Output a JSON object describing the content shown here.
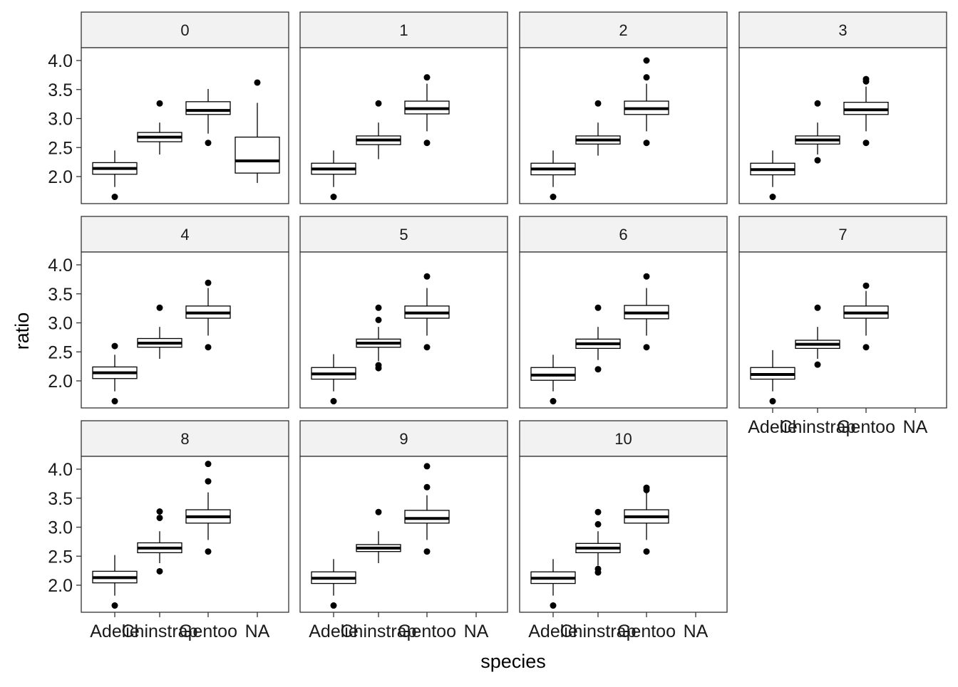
{
  "chart_data": {
    "type": "boxplot",
    "facet_layout": "wrap",
    "xlabel": "species",
    "ylabel": "ratio",
    "categories": [
      "Adelie",
      "Chinstrap",
      "Gentoo",
      "NA"
    ],
    "y_ticks": [
      "2.0",
      "2.5",
      "3.0",
      "3.5",
      "4.0"
    ],
    "ylim": [
      1.6,
      4.1
    ],
    "grid": false,
    "panels": [
      {
        "label": "0",
        "boxes": [
          {
            "category": "Adelie",
            "lower": 1.82,
            "q1": 2.04,
            "median": 2.14,
            "q3": 2.24,
            "upper": 2.45,
            "outliers": [
              1.65
            ]
          },
          {
            "category": "Chinstrap",
            "lower": 2.38,
            "q1": 2.6,
            "median": 2.68,
            "q3": 2.76,
            "upper": 2.93,
            "outliers": [
              3.26
            ]
          },
          {
            "category": "Gentoo",
            "lower": 2.74,
            "q1": 3.07,
            "median": 3.14,
            "q3": 3.29,
            "upper": 3.51,
            "outliers": [
              2.58
            ]
          },
          {
            "category": "NA",
            "lower": 1.89,
            "q1": 2.06,
            "median": 2.27,
            "q3": 2.68,
            "upper": 3.27,
            "outliers": [
              3.62
            ]
          }
        ]
      },
      {
        "label": "1",
        "boxes": [
          {
            "category": "Adelie",
            "lower": 1.82,
            "q1": 2.04,
            "median": 2.13,
            "q3": 2.23,
            "upper": 2.45,
            "outliers": [
              1.65
            ]
          },
          {
            "category": "Chinstrap",
            "lower": 2.3,
            "q1": 2.55,
            "median": 2.63,
            "q3": 2.7,
            "upper": 2.93,
            "outliers": [
              3.26
            ]
          },
          {
            "category": "Gentoo",
            "lower": 2.78,
            "q1": 3.08,
            "median": 3.17,
            "q3": 3.3,
            "upper": 3.6,
            "outliers": [
              2.58,
              3.71
            ]
          }
        ]
      },
      {
        "label": "2",
        "boxes": [
          {
            "category": "Adelie",
            "lower": 1.82,
            "q1": 2.03,
            "median": 2.13,
            "q3": 2.23,
            "upper": 2.45,
            "outliers": [
              1.65
            ]
          },
          {
            "category": "Chinstrap",
            "lower": 2.36,
            "q1": 2.56,
            "median": 2.63,
            "q3": 2.7,
            "upper": 2.93,
            "outliers": [
              3.26
            ]
          },
          {
            "category": "Gentoo",
            "lower": 2.78,
            "q1": 3.07,
            "median": 3.17,
            "q3": 3.3,
            "upper": 3.6,
            "outliers": [
              2.58,
              3.71,
              4.0
            ]
          }
        ]
      },
      {
        "label": "3",
        "boxes": [
          {
            "category": "Adelie",
            "lower": 1.82,
            "q1": 2.03,
            "median": 2.12,
            "q3": 2.23,
            "upper": 2.45,
            "outliers": [
              1.65
            ]
          },
          {
            "category": "Chinstrap",
            "lower": 2.38,
            "q1": 2.56,
            "median": 2.63,
            "q3": 2.7,
            "upper": 2.93,
            "outliers": [
              2.28,
              3.26
            ]
          },
          {
            "category": "Gentoo",
            "lower": 2.78,
            "q1": 3.07,
            "median": 3.15,
            "q3": 3.28,
            "upper": 3.55,
            "outliers": [
              2.58,
              3.64,
              3.68
            ]
          }
        ]
      },
      {
        "label": "4",
        "boxes": [
          {
            "category": "Adelie",
            "lower": 1.82,
            "q1": 2.04,
            "median": 2.14,
            "q3": 2.24,
            "upper": 2.45,
            "outliers": [
              1.65,
              2.6
            ]
          },
          {
            "category": "Chinstrap",
            "lower": 2.38,
            "q1": 2.58,
            "median": 2.65,
            "q3": 2.73,
            "upper": 2.93,
            "outliers": [
              3.26
            ]
          },
          {
            "category": "Gentoo",
            "lower": 2.78,
            "q1": 3.08,
            "median": 3.17,
            "q3": 3.29,
            "upper": 3.6,
            "outliers": [
              2.58,
              3.69
            ]
          }
        ]
      },
      {
        "label": "5",
        "boxes": [
          {
            "category": "Adelie",
            "lower": 1.82,
            "q1": 2.03,
            "median": 2.12,
            "q3": 2.23,
            "upper": 2.46,
            "outliers": [
              1.65
            ]
          },
          {
            "category": "Chinstrap",
            "lower": 2.34,
            "q1": 2.58,
            "median": 2.65,
            "q3": 2.72,
            "upper": 2.93,
            "outliers": [
              2.22,
              2.27,
              3.05,
              3.26
            ]
          },
          {
            "category": "Gentoo",
            "lower": 2.78,
            "q1": 3.08,
            "median": 3.17,
            "q3": 3.29,
            "upper": 3.6,
            "outliers": [
              2.58,
              3.8
            ]
          }
        ]
      },
      {
        "label": "6",
        "boxes": [
          {
            "category": "Adelie",
            "lower": 1.82,
            "q1": 2.01,
            "median": 2.1,
            "q3": 2.23,
            "upper": 2.45,
            "outliers": [
              1.65
            ]
          },
          {
            "category": "Chinstrap",
            "lower": 2.36,
            "q1": 2.56,
            "median": 2.64,
            "q3": 2.72,
            "upper": 2.93,
            "outliers": [
              2.2,
              3.26
            ]
          },
          {
            "category": "Gentoo",
            "lower": 2.78,
            "q1": 3.07,
            "median": 3.17,
            "q3": 3.3,
            "upper": 3.6,
            "outliers": [
              2.58,
              3.8
            ]
          }
        ]
      },
      {
        "label": "7",
        "boxes": [
          {
            "category": "Adelie",
            "lower": 1.82,
            "q1": 2.03,
            "median": 2.11,
            "q3": 2.23,
            "upper": 2.53,
            "outliers": [
              1.65
            ]
          },
          {
            "category": "Chinstrap",
            "lower": 2.38,
            "q1": 2.56,
            "median": 2.63,
            "q3": 2.7,
            "upper": 2.93,
            "outliers": [
              2.28,
              3.26
            ]
          },
          {
            "category": "Gentoo",
            "lower": 2.78,
            "q1": 3.08,
            "median": 3.17,
            "q3": 3.29,
            "upper": 3.55,
            "outliers": [
              2.58,
              3.64
            ]
          }
        ]
      },
      {
        "label": "8",
        "boxes": [
          {
            "category": "Adelie",
            "lower": 1.82,
            "q1": 2.04,
            "median": 2.13,
            "q3": 2.24,
            "upper": 2.52,
            "outliers": [
              1.65
            ]
          },
          {
            "category": "Chinstrap",
            "lower": 2.38,
            "q1": 2.56,
            "median": 2.64,
            "q3": 2.73,
            "upper": 2.93,
            "outliers": [
              2.24,
              3.16,
              3.27
            ]
          },
          {
            "category": "Gentoo",
            "lower": 2.78,
            "q1": 3.07,
            "median": 3.18,
            "q3": 3.3,
            "upper": 3.6,
            "outliers": [
              2.58,
              3.79,
              4.09
            ]
          }
        ]
      },
      {
        "label": "9",
        "boxes": [
          {
            "category": "Adelie",
            "lower": 1.82,
            "q1": 2.03,
            "median": 2.12,
            "q3": 2.23,
            "upper": 2.45,
            "outliers": [
              1.65
            ]
          },
          {
            "category": "Chinstrap",
            "lower": 2.38,
            "q1": 2.58,
            "median": 2.64,
            "q3": 2.7,
            "upper": 2.93,
            "outliers": [
              3.26
            ]
          },
          {
            "category": "Gentoo",
            "lower": 2.78,
            "q1": 3.07,
            "median": 3.15,
            "q3": 3.29,
            "upper": 3.55,
            "outliers": [
              2.58,
              3.69,
              4.05
            ]
          }
        ]
      },
      {
        "label": "10",
        "boxes": [
          {
            "category": "Adelie",
            "lower": 1.82,
            "q1": 2.03,
            "median": 2.12,
            "q3": 2.23,
            "upper": 2.45,
            "outliers": [
              1.65
            ]
          },
          {
            "category": "Chinstrap",
            "lower": 2.34,
            "q1": 2.56,
            "median": 2.64,
            "q3": 2.72,
            "upper": 2.93,
            "outliers": [
              2.22,
              2.28,
              3.05,
              3.26
            ]
          },
          {
            "category": "Gentoo",
            "lower": 2.78,
            "q1": 3.07,
            "median": 3.18,
            "q3": 3.3,
            "upper": 3.6,
            "outliers": [
              2.58,
              3.64,
              3.68
            ]
          }
        ]
      }
    ]
  }
}
